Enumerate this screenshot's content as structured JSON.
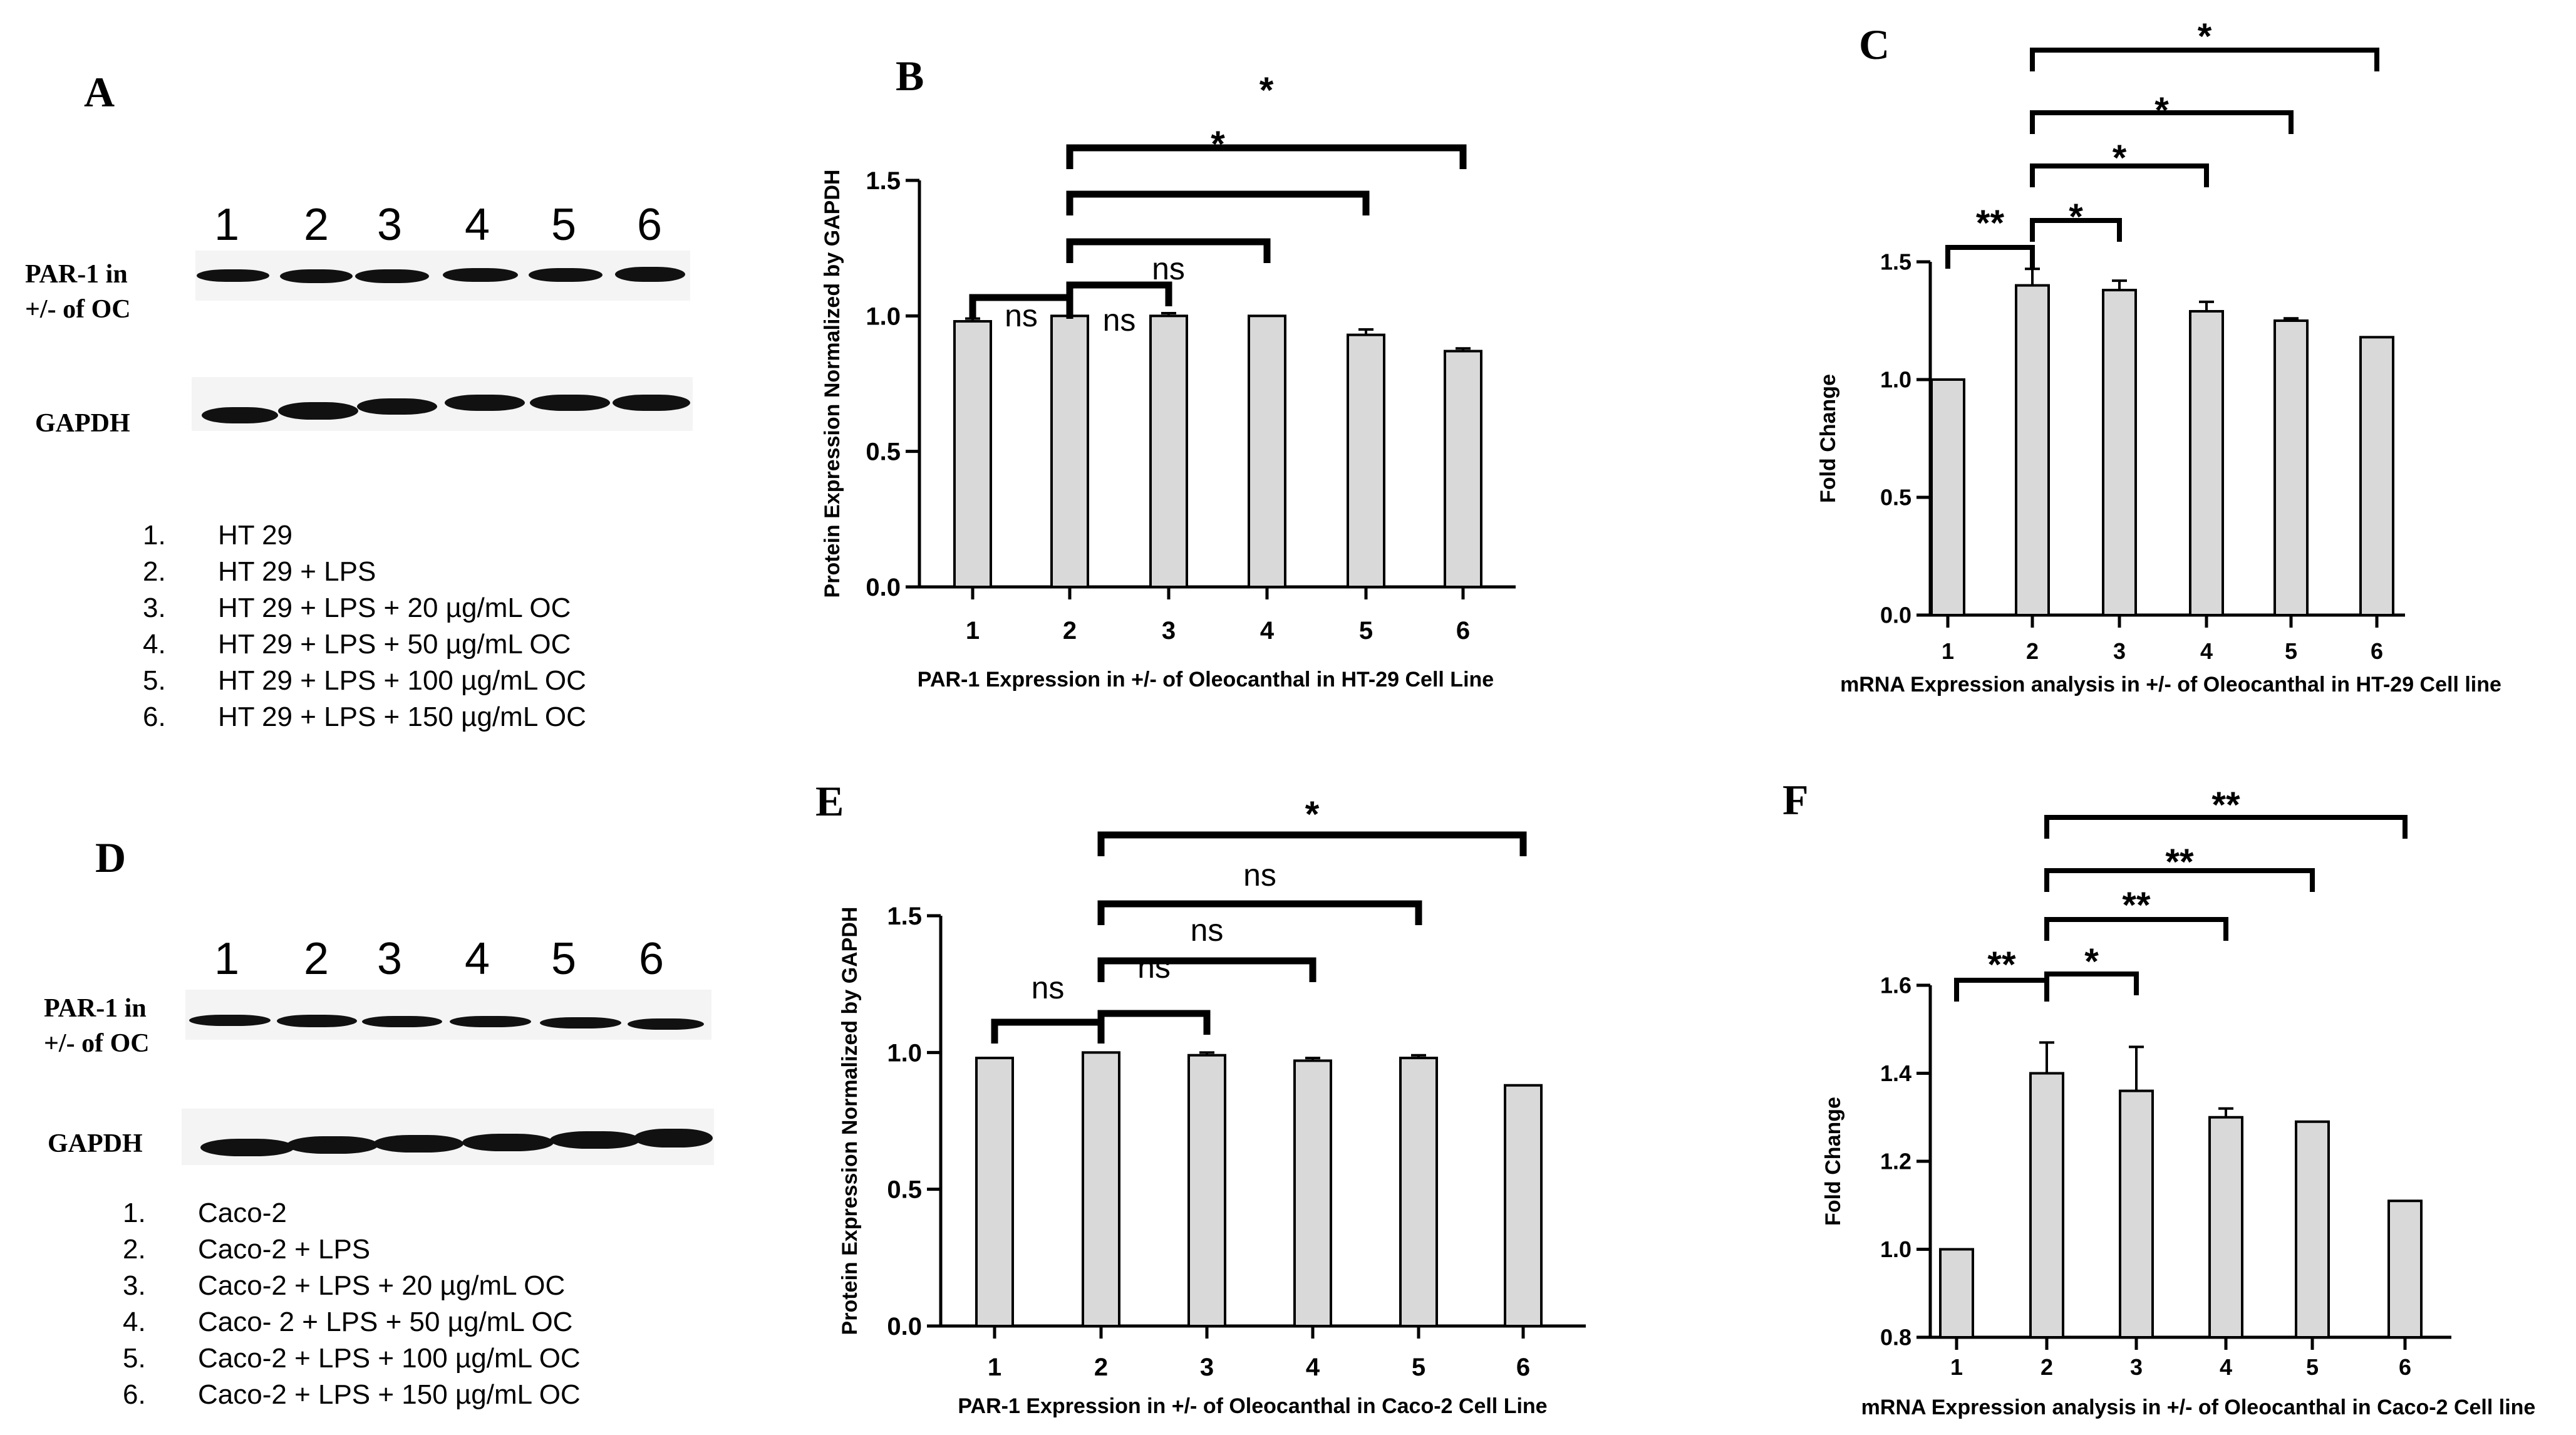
{
  "panel_a": {
    "letter": "A",
    "lanes": [
      "1",
      "2",
      "3",
      "4",
      "5",
      "6"
    ],
    "rows": [
      {
        "line1": "PAR-1 in",
        "line2": "+/- of OC"
      },
      {
        "line1": "GAPDH",
        "line2": ""
      }
    ],
    "legend": [
      {
        "num": "1.",
        "text": "HT 29"
      },
      {
        "num": "2.",
        "text": "HT 29 + LPS"
      },
      {
        "num": "3.",
        "text": "HT 29 + LPS + 20 µg/mL OC"
      },
      {
        "num": "4.",
        "text": "HT 29 + LPS + 50 µg/mL OC"
      },
      {
        "num": "5.",
        "text": "HT 29 + LPS + 100 µg/mL OC"
      },
      {
        "num": "6.",
        "text": "HT 29 + LPS + 150 µg/mL OC"
      }
    ]
  },
  "panel_d": {
    "letter": "D",
    "lanes": [
      "1",
      "2",
      "3",
      "4",
      "5",
      "6"
    ],
    "rows": [
      {
        "line1": "PAR-1 in",
        "line2": "+/- of OC"
      },
      {
        "line1": "GAPDH",
        "line2": ""
      }
    ],
    "legend": [
      {
        "num": "1.",
        "text": "Caco-2"
      },
      {
        "num": "2.",
        "text": "Caco-2 + LPS"
      },
      {
        "num": "3.",
        "text": "Caco-2 + LPS + 20 µg/mL OC"
      },
      {
        "num": "4.",
        "text": "Caco- 2 + LPS + 50 µg/mL OC"
      },
      {
        "num": "5.",
        "text": "Caco-2 + LPS + 100 µg/mL OC"
      },
      {
        "num": "6.",
        "text": "Caco-2 + LPS + 150 µg/mL OC"
      }
    ]
  },
  "chart_data": [
    {
      "id": "B",
      "type": "bar",
      "title": "PAR-1 Expression in +/- of Oleocanthal in HT-29 Cell Line",
      "ylabel": "Protein Expression Normalized by GAPDH",
      "xlabel": "",
      "categories": [
        "1",
        "2",
        "3",
        "4",
        "5",
        "6"
      ],
      "values": [
        0.98,
        1.0,
        1.0,
        1.0,
        0.93,
        0.87
      ],
      "errors": [
        0.01,
        0.0,
        0.01,
        0.0,
        0.02,
        0.01
      ],
      "ylim": [
        0,
        1.5
      ],
      "yticks": [
        "0.0",
        "0.5",
        "1.0",
        "1.5"
      ],
      "bar_color": "#d9d9d9",
      "comparisons": [
        {
          "from": "1",
          "to": "2",
          "label": "ns"
        },
        {
          "from": "2",
          "to": "3",
          "label": "ns"
        },
        {
          "from": "2",
          "to": "4",
          "label": "ns"
        },
        {
          "from": "2",
          "to": "5",
          "label": "*"
        },
        {
          "from": "2",
          "to": "6",
          "label": "*"
        }
      ]
    },
    {
      "id": "C",
      "type": "bar",
      "title": "mRNA Expression analysis in +/- of Oleocanthal in HT-29 Cell line",
      "ylabel": "Fold Change",
      "xlabel": "",
      "categories": [
        "1",
        "2",
        "3",
        "4",
        "5",
        "6"
      ],
      "values": [
        1.0,
        1.4,
        1.38,
        1.29,
        1.25,
        1.18
      ],
      "errors": [
        0.0,
        0.07,
        0.04,
        0.04,
        0.01,
        0.0
      ],
      "ylim": [
        0,
        1.5
      ],
      "yticks": [
        "0.0",
        "0.5",
        "1.0",
        "1.5"
      ],
      "bar_color": "#d9d9d9",
      "comparisons": [
        {
          "from": "1",
          "to": "2",
          "label": "**"
        },
        {
          "from": "2",
          "to": "3",
          "label": "*"
        },
        {
          "from": "2",
          "to": "4",
          "label": "*"
        },
        {
          "from": "2",
          "to": "5",
          "label": "*"
        },
        {
          "from": "2",
          "to": "6",
          "label": "*"
        }
      ]
    },
    {
      "id": "E",
      "type": "bar",
      "title": "PAR-1 Expression in +/- of Oleocanthal in Caco-2 Cell Line",
      "ylabel": "Protein Expression Normalized by GAPDH",
      "xlabel": "",
      "categories": [
        "1",
        "2",
        "3",
        "4",
        "5",
        "6"
      ],
      "values": [
        0.98,
        1.0,
        0.99,
        0.97,
        0.98,
        0.88
      ],
      "errors": [
        0.0,
        0.0,
        0.01,
        0.01,
        0.01,
        0.0
      ],
      "ylim": [
        0,
        1.5
      ],
      "yticks": [
        "0.0",
        "0.5",
        "1.0",
        "1.5"
      ],
      "bar_color": "#d9d9d9",
      "comparisons": [
        {
          "from": "1",
          "to": "2",
          "label": "ns"
        },
        {
          "from": "2",
          "to": "3",
          "label": "ns"
        },
        {
          "from": "2",
          "to": "4",
          "label": "ns"
        },
        {
          "from": "2",
          "to": "5",
          "label": "ns"
        },
        {
          "from": "2",
          "to": "6",
          "label": "*"
        }
      ]
    },
    {
      "id": "F",
      "type": "bar",
      "title": "mRNA Expression analysis in +/- of Oleocanthal in Caco-2 Cell line",
      "ylabel": "Fold Change",
      "xlabel": "",
      "categories": [
        "1",
        "2",
        "3",
        "4",
        "5",
        "6"
      ],
      "values": [
        1.0,
        1.4,
        1.36,
        1.3,
        1.29,
        1.11
      ],
      "errors": [
        0.0,
        0.07,
        0.1,
        0.02,
        0.0,
        0.0
      ],
      "ylim": [
        0.8,
        1.6
      ],
      "yticks": [
        "0.8",
        "1.0",
        "1.2",
        "1.4",
        "1.6"
      ],
      "bar_color": "#d9d9d9",
      "comparisons": [
        {
          "from": "1",
          "to": "2",
          "label": "**"
        },
        {
          "from": "2",
          "to": "3",
          "label": "*"
        },
        {
          "from": "2",
          "to": "4",
          "label": "**"
        },
        {
          "from": "2",
          "to": "5",
          "label": "**"
        },
        {
          "from": "2",
          "to": "6",
          "label": "**"
        }
      ]
    }
  ]
}
